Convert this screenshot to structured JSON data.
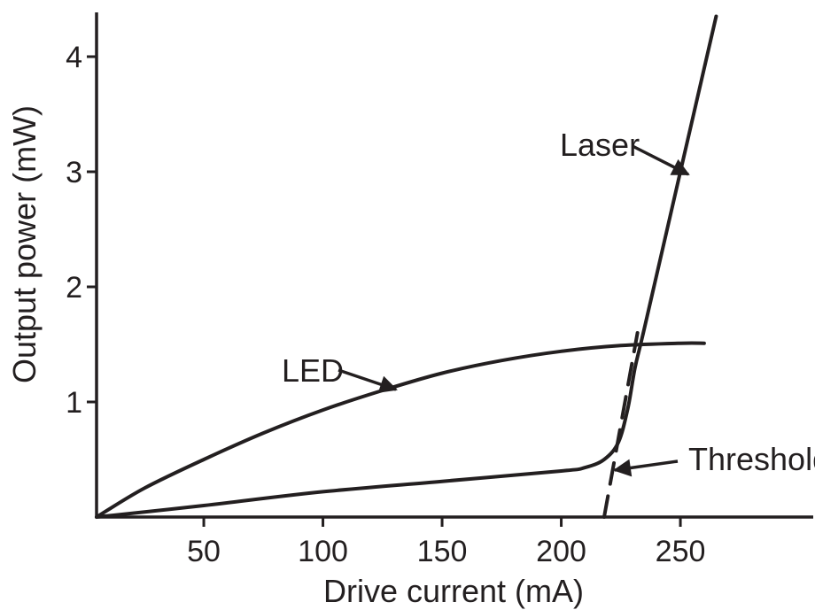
{
  "chart_data": {
    "type": "line",
    "xlabel": "Drive current (mA)",
    "ylabel": "Output power (mW)",
    "xlim": [
      5,
      300
    ],
    "ylim": [
      0,
      4.35
    ],
    "x_ticks": [
      50,
      100,
      150,
      200,
      250
    ],
    "y_ticks": [
      1,
      2,
      3,
      4
    ],
    "grid": false,
    "series": [
      {
        "name": "LED",
        "style": "solid",
        "x": [
          5,
          25,
          50,
          75,
          100,
          125,
          150,
          175,
          200,
          225,
          250,
          260
        ],
        "y": [
          0,
          0.25,
          0.5,
          0.73,
          0.93,
          1.1,
          1.25,
          1.36,
          1.44,
          1.49,
          1.51,
          1.51
        ]
      },
      {
        "name": "Laser",
        "style": "solid",
        "x": [
          5,
          50,
          100,
          150,
          200,
          210,
          218,
          224,
          228,
          231,
          235,
          250,
          265
        ],
        "y": [
          0,
          0.1,
          0.22,
          0.31,
          0.4,
          0.43,
          0.5,
          0.65,
          0.95,
          1.3,
          1.65,
          3.0,
          4.35
        ]
      },
      {
        "name": "Threshold",
        "style": "dashed",
        "x": [
          218,
          232
        ],
        "y": [
          0,
          1.6
        ]
      }
    ],
    "annotations": [
      {
        "text": "Laser",
        "points_to": "Laser"
      },
      {
        "text": "LED",
        "points_to": "LED"
      },
      {
        "text": "Threshold",
        "points_to": "Threshold"
      }
    ],
    "color": "#231f20"
  }
}
